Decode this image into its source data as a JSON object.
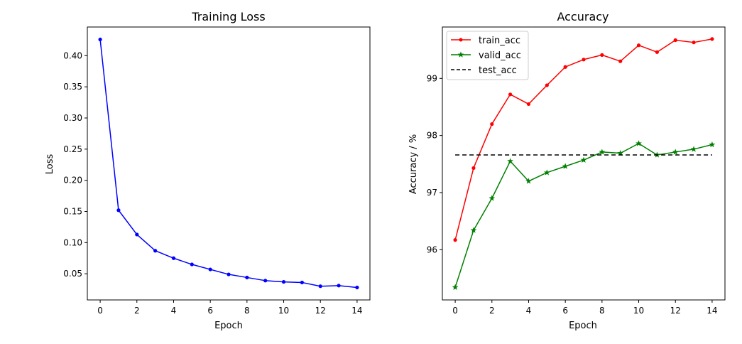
{
  "chart_data": [
    {
      "type": "line",
      "title": "Training Loss",
      "xlabel": "Epoch",
      "ylabel": "Loss",
      "xlim": [
        -0.7,
        14.7
      ],
      "ylim": [
        0.008,
        0.446
      ],
      "xticks": [
        0,
        2,
        4,
        6,
        8,
        10,
        12,
        14
      ],
      "xtick_labels": [
        "0",
        "2",
        "4",
        "6",
        "8",
        "10",
        "12",
        "14"
      ],
      "yticks": [
        0.05,
        0.1,
        0.15,
        0.2,
        0.25,
        0.3,
        0.35,
        0.4
      ],
      "ytick_labels": [
        "0.05",
        "0.10",
        "0.15",
        "0.20",
        "0.25",
        "0.30",
        "0.35",
        "0.40"
      ],
      "grid": false,
      "series": [
        {
          "color": "#0000ff",
          "marker": "dot",
          "x": [
            0,
            1,
            2,
            3,
            4,
            5,
            6,
            7,
            8,
            9,
            10,
            11,
            12,
            13,
            14
          ],
          "values": [
            0.426,
            0.152,
            0.113,
            0.087,
            0.075,
            0.065,
            0.057,
            0.049,
            0.044,
            0.039,
            0.037,
            0.036,
            0.03,
            0.031,
            0.028
          ]
        }
      ]
    },
    {
      "type": "line",
      "title": "Accuracy",
      "xlabel": "Epoch",
      "ylabel": "Accuracy / %",
      "xlim": [
        -0.7,
        14.7
      ],
      "ylim": [
        95.12,
        99.9
      ],
      "xticks": [
        0,
        2,
        4,
        6,
        8,
        10,
        12,
        14
      ],
      "xtick_labels": [
        "0",
        "2",
        "4",
        "6",
        "8",
        "10",
        "12",
        "14"
      ],
      "yticks": [
        96,
        97,
        98,
        99
      ],
      "ytick_labels": [
        "96",
        "97",
        "98",
        "99"
      ],
      "grid": false,
      "legend": "top-left",
      "series": [
        {
          "name": "train_acc",
          "color": "#ff0000",
          "marker": "dot",
          "x": [
            0,
            1,
            2,
            3,
            4,
            5,
            6,
            7,
            8,
            9,
            10,
            11,
            12,
            13,
            14
          ],
          "values": [
            96.17,
            97.43,
            98.2,
            98.72,
            98.55,
            98.88,
            99.2,
            99.33,
            99.41,
            99.3,
            99.58,
            99.46,
            99.67,
            99.63,
            99.69
          ]
        },
        {
          "name": "valid_acc",
          "color": "#008000",
          "marker": "star",
          "x": [
            0,
            1,
            2,
            3,
            4,
            5,
            6,
            7,
            8,
            9,
            10,
            11,
            12,
            13,
            14
          ],
          "values": [
            95.34,
            96.34,
            96.9,
            97.55,
            97.2,
            97.35,
            97.46,
            97.57,
            97.71,
            97.69,
            97.86,
            97.66,
            97.71,
            97.76,
            97.84
          ]
        },
        {
          "name": "test_acc",
          "color": "#000000",
          "marker": "none",
          "dashed": true,
          "x": [
            0,
            14
          ],
          "values": [
            97.66,
            97.66
          ]
        }
      ]
    }
  ]
}
